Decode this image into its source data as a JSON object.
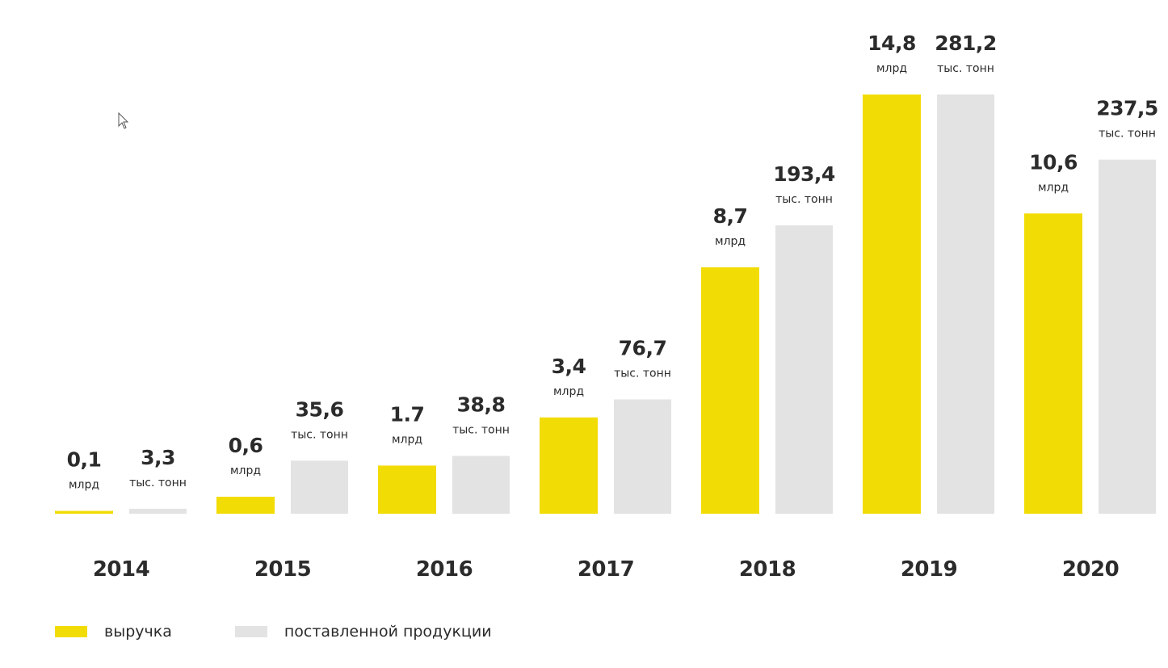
{
  "chart_data": {
    "type": "bar",
    "categories": [
      "2014",
      "2015",
      "2016",
      "2017",
      "2018",
      "2019",
      "2020"
    ],
    "series": [
      {
        "name": "выручка",
        "color": "#f2dc05",
        "values": [
          0.1,
          0.6,
          1.7,
          3.4,
          8.7,
          14.8,
          10.6
        ],
        "labels": [
          "0,1",
          "0,6",
          "1.7",
          "3,4",
          "8,7",
          "14,8",
          "10,6"
        ],
        "unit": "млрд",
        "ylim": [
          0,
          14.8
        ]
      },
      {
        "name": "поставленной продукции",
        "color": "#e3e3e3",
        "values": [
          3.3,
          35.6,
          38.8,
          76.7,
          193.4,
          281.2,
          237.5
        ],
        "labels": [
          "3,3",
          "35,6",
          "38,8",
          "76,7",
          "193,4",
          "281,2",
          "237,5"
        ],
        "unit": "тыс. тонн",
        "ylim": [
          0,
          281.2
        ]
      }
    ],
    "title": "",
    "xlabel": "",
    "ylabel": "",
    "grid": false,
    "legend_position": "bottom-left"
  }
}
